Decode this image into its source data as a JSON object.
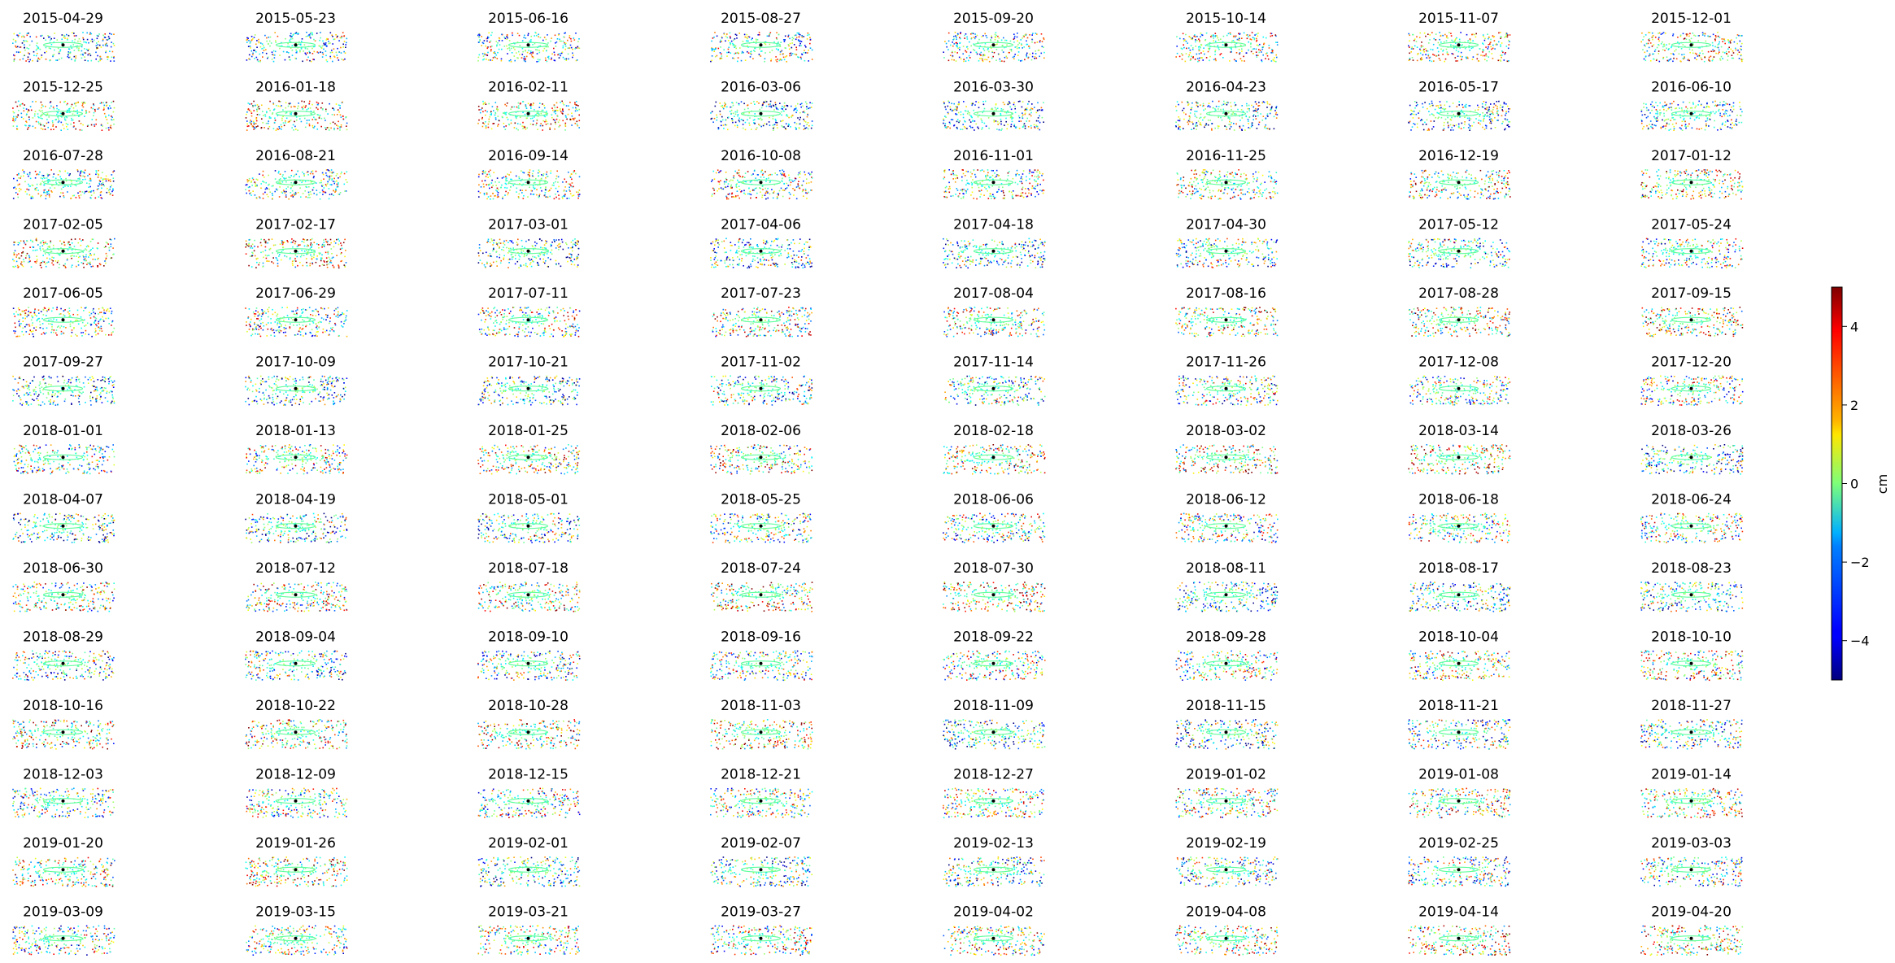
{
  "chart_data": {
    "type": "scatter",
    "layout": "small-multiples grid, 14 rows x 8 columns",
    "panel_titles": [
      "2015-04-29",
      "2015-05-23",
      "2015-06-16",
      "2015-08-27",
      "2015-09-20",
      "2015-10-14",
      "2015-11-07",
      "2015-12-01",
      "2015-12-25",
      "2016-01-18",
      "2016-02-11",
      "2016-03-06",
      "2016-03-30",
      "2016-04-23",
      "2016-05-17",
      "2016-06-10",
      "2016-07-28",
      "2016-08-21",
      "2016-09-14",
      "2016-10-08",
      "2016-11-01",
      "2016-11-25",
      "2016-12-19",
      "2017-01-12",
      "2017-02-05",
      "2017-02-17",
      "2017-03-01",
      "2017-04-06",
      "2017-04-18",
      "2017-04-30",
      "2017-05-12",
      "2017-05-24",
      "2017-06-05",
      "2017-06-29",
      "2017-07-11",
      "2017-07-23",
      "2017-08-04",
      "2017-08-16",
      "2017-08-28",
      "2017-09-15",
      "2017-09-27",
      "2017-10-09",
      "2017-10-21",
      "2017-11-02",
      "2017-11-14",
      "2017-11-26",
      "2017-12-08",
      "2017-12-20",
      "2018-01-01",
      "2018-01-13",
      "2018-01-25",
      "2018-02-06",
      "2018-02-18",
      "2018-03-02",
      "2018-03-14",
      "2018-03-26",
      "2018-04-07",
      "2018-04-19",
      "2018-05-01",
      "2018-05-25",
      "2018-06-06",
      "2018-06-12",
      "2018-06-18",
      "2018-06-24",
      "2018-06-30",
      "2018-07-12",
      "2018-07-18",
      "2018-07-24",
      "2018-07-30",
      "2018-08-11",
      "2018-08-17",
      "2018-08-23",
      "2018-08-29",
      "2018-09-04",
      "2018-09-10",
      "2018-09-16",
      "2018-09-22",
      "2018-09-28",
      "2018-10-04",
      "2018-10-10",
      "2018-10-16",
      "2018-10-22",
      "2018-10-28",
      "2018-11-03",
      "2018-11-09",
      "2018-11-15",
      "2018-11-21",
      "2018-11-27",
      "2018-12-03",
      "2018-12-09",
      "2018-12-15",
      "2018-12-21",
      "2018-12-27",
      "2019-01-02",
      "2019-01-08",
      "2019-01-14",
      "2019-01-20",
      "2019-01-26",
      "2019-02-01",
      "2019-02-07",
      "2019-02-13",
      "2019-02-19",
      "2019-02-25",
      "2019-03-03",
      "2019-03-09",
      "2019-03-15",
      "2019-03-21",
      "2019-03-27",
      "2019-04-02",
      "2019-04-08",
      "2019-04-14",
      "2019-04-20"
    ],
    "colorbar": {
      "label": "cm",
      "vmin": -5,
      "vmax": 5,
      "ticks": [
        "4",
        "2",
        "0",
        "−2",
        "−4"
      ],
      "tick_values": [
        4,
        2,
        0,
        -2,
        -4
      ],
      "colormap": "jet"
    },
    "axes_visible": false,
    "grid": false
  }
}
